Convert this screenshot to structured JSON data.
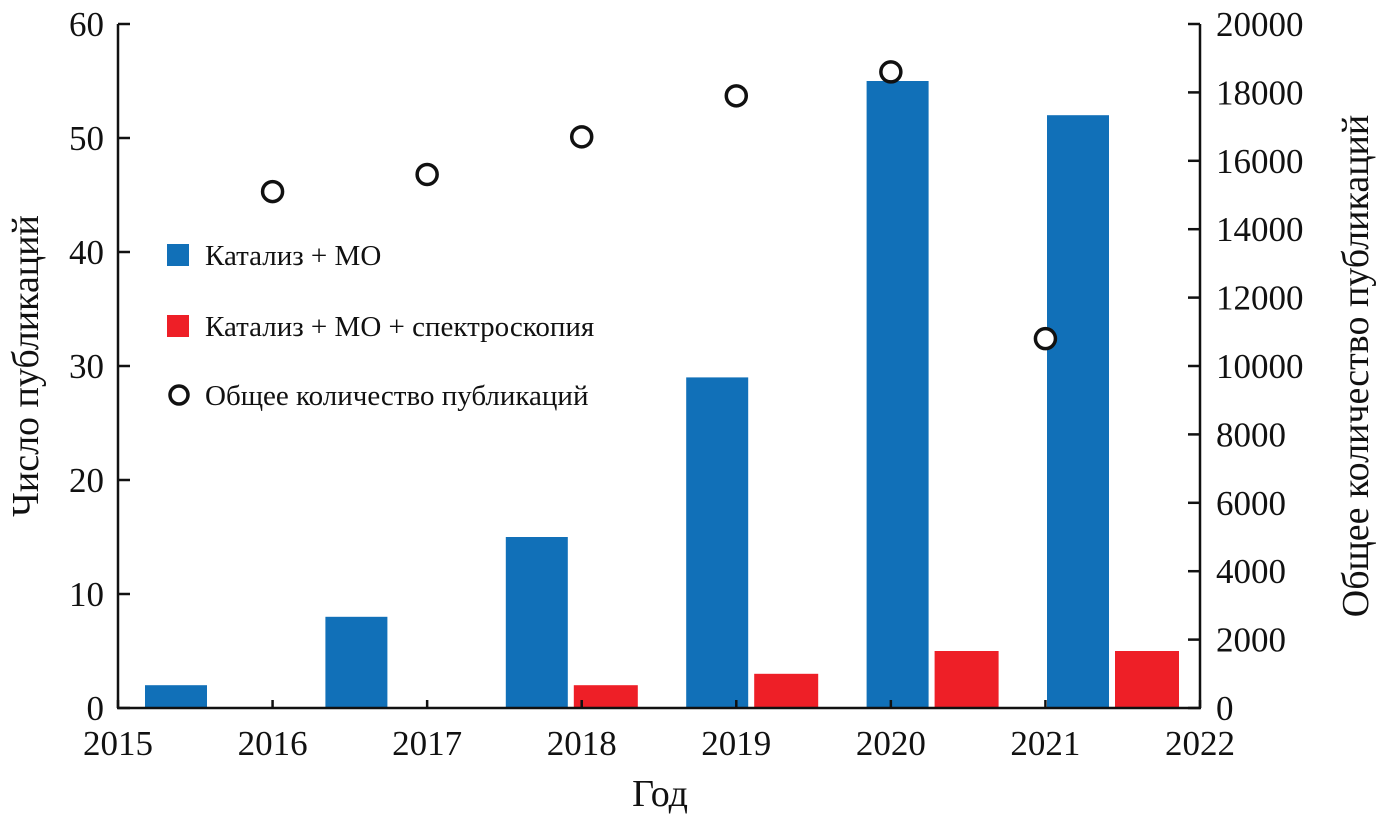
{
  "chart_data": {
    "type": "bar",
    "xlabel": "Год",
    "ylabel": "Число публикаций",
    "y2label": "Общее количество публикаций",
    "categories": [
      "2016",
      "2017",
      "2018",
      "2019",
      "2020",
      "2021"
    ],
    "xlim": [
      2015,
      2022
    ],
    "xticks": [
      "2015",
      "2016",
      "2017",
      "2018",
      "2019",
      "2020",
      "2021",
      "2022"
    ],
    "ylim": [
      0,
      60
    ],
    "yticks": [
      "0",
      "10",
      "20",
      "30",
      "40",
      "50",
      "60"
    ],
    "y2lim": [
      0,
      20000
    ],
    "y2ticks": [
      "0",
      "2000",
      "4000",
      "6000",
      "8000",
      "10000",
      "12000",
      "14000",
      "16000",
      "18000",
      "20000"
    ],
    "grid": false,
    "legend_position": "left-middle",
    "series": [
      {
        "name": "Катализ + МО",
        "type": "bar",
        "axis": "left",
        "color": "#1170b8",
        "values": [
          2,
          8,
          15,
          29,
          55,
          52
        ]
      },
      {
        "name": "Катализ + МО + спектроскопия",
        "type": "bar",
        "axis": "left",
        "color": "#ee1f27",
        "values": [
          0,
          0,
          2,
          3,
          5,
          5
        ]
      },
      {
        "name": "Общее количество публикаций",
        "type": "scatter",
        "axis": "right",
        "color": "#111111",
        "x": [
          2016,
          2017,
          2018,
          2019,
          2020,
          2021
        ],
        "values": [
          15100,
          15600,
          16700,
          17900,
          18600,
          10800
        ]
      }
    ]
  }
}
